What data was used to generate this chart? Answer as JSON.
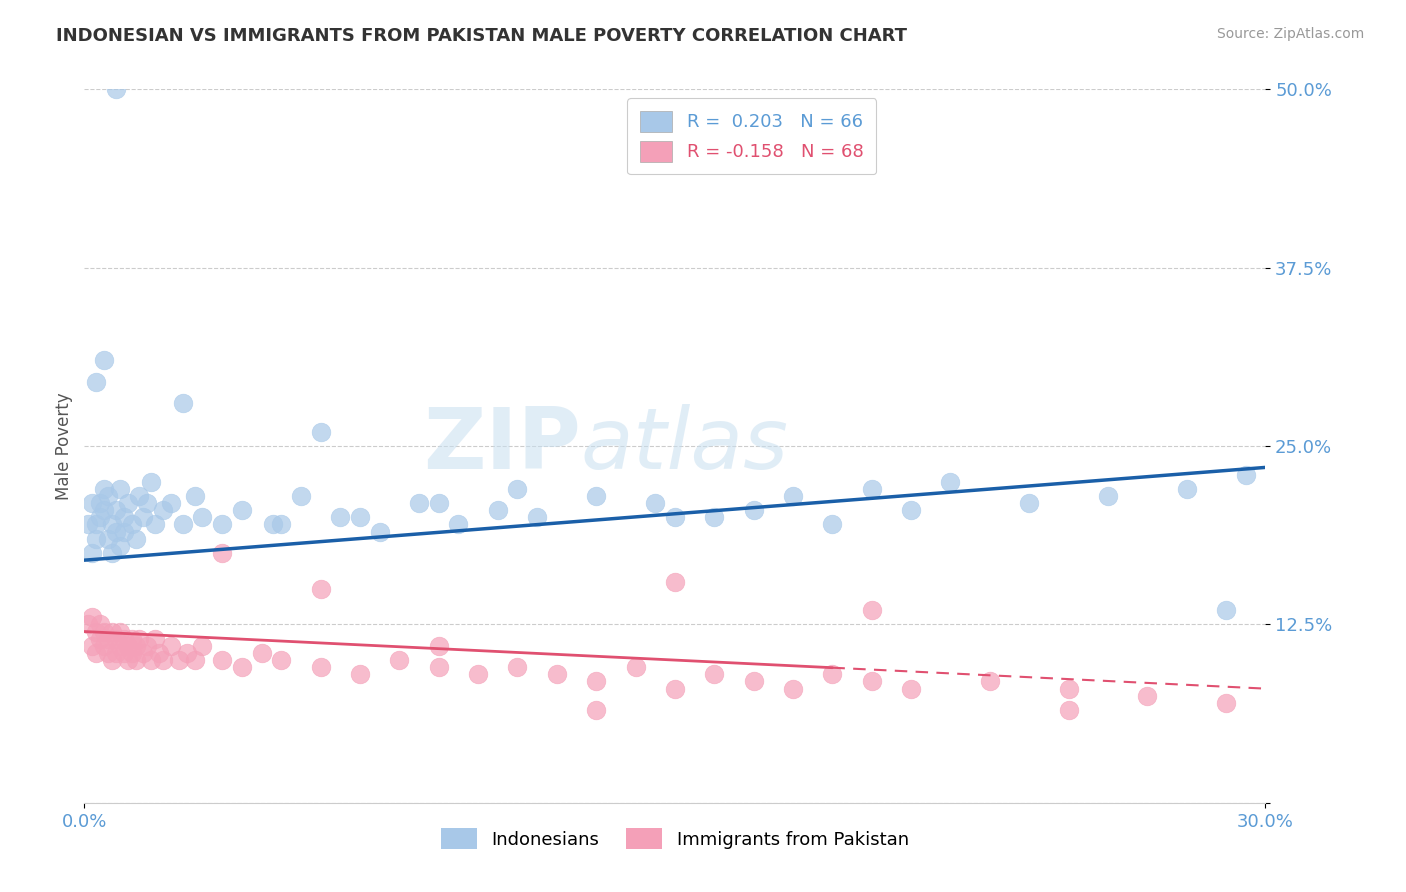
{
  "title": "INDONESIAN VS IMMIGRANTS FROM PAKISTAN MALE POVERTY CORRELATION CHART",
  "source_text": "Source: ZipAtlas.com",
  "ylabel": "Male Poverty",
  "watermark_zip": "ZIP",
  "watermark_atlas": "atlas",
  "xlim": [
    0.0,
    0.3
  ],
  "ylim": [
    0.0,
    0.5
  ],
  "yticks": [
    0.0,
    0.125,
    0.25,
    0.375,
    0.5
  ],
  "ytick_labels": [
    "",
    "12.5%",
    "25.0%",
    "37.5%",
    "50.0%"
  ],
  "xtick_labels": [
    "0.0%",
    "30.0%"
  ],
  "series1_label": "Indonesians",
  "series2_label": "Immigrants from Pakistan",
  "series1_color": "#a8c8e8",
  "series2_color": "#f4a0b8",
  "line1_color": "#1a5fa8",
  "line2_color": "#e05070",
  "background_color": "#ffffff",
  "grid_color": "#cccccc",
  "title_color": "#333333",
  "axis_tick_color": "#5b9bd5",
  "r1": 0.203,
  "n1": 66,
  "r2": -0.158,
  "n2": 68,
  "line1_x0": 0.0,
  "line1_y0": 0.17,
  "line1_x1": 0.3,
  "line1_y1": 0.235,
  "line2_x0": 0.0,
  "line2_y0": 0.12,
  "line2_x1": 0.3,
  "line2_y1": 0.08,
  "indonesians_x": [
    0.001,
    0.002,
    0.002,
    0.003,
    0.003,
    0.004,
    0.004,
    0.005,
    0.005,
    0.006,
    0.006,
    0.007,
    0.007,
    0.008,
    0.008,
    0.009,
    0.009,
    0.01,
    0.01,
    0.011,
    0.012,
    0.013,
    0.014,
    0.015,
    0.016,
    0.017,
    0.018,
    0.02,
    0.022,
    0.025,
    0.028,
    0.03,
    0.035,
    0.04,
    0.048,
    0.055,
    0.065,
    0.075,
    0.085,
    0.095,
    0.105,
    0.115,
    0.13,
    0.145,
    0.16,
    0.18,
    0.2,
    0.22,
    0.24,
    0.26,
    0.28,
    0.295,
    0.05,
    0.07,
    0.09,
    0.11,
    0.15,
    0.17,
    0.19,
    0.21,
    0.025,
    0.06,
    0.003,
    0.005,
    0.008,
    0.29
  ],
  "indonesians_y": [
    0.195,
    0.175,
    0.21,
    0.185,
    0.195,
    0.2,
    0.21,
    0.205,
    0.22,
    0.185,
    0.215,
    0.195,
    0.175,
    0.19,
    0.205,
    0.18,
    0.22,
    0.19,
    0.2,
    0.21,
    0.195,
    0.185,
    0.215,
    0.2,
    0.21,
    0.225,
    0.195,
    0.205,
    0.21,
    0.195,
    0.215,
    0.2,
    0.195,
    0.205,
    0.195,
    0.215,
    0.2,
    0.19,
    0.21,
    0.195,
    0.205,
    0.2,
    0.215,
    0.21,
    0.2,
    0.215,
    0.22,
    0.225,
    0.21,
    0.215,
    0.22,
    0.23,
    0.195,
    0.2,
    0.21,
    0.22,
    0.2,
    0.205,
    0.195,
    0.205,
    0.28,
    0.26,
    0.295,
    0.31,
    0.5,
    0.135
  ],
  "pakistan_x": [
    0.001,
    0.002,
    0.002,
    0.003,
    0.003,
    0.004,
    0.004,
    0.005,
    0.005,
    0.006,
    0.006,
    0.007,
    0.007,
    0.008,
    0.008,
    0.009,
    0.009,
    0.01,
    0.01,
    0.011,
    0.011,
    0.012,
    0.012,
    0.013,
    0.013,
    0.014,
    0.015,
    0.016,
    0.017,
    0.018,
    0.019,
    0.02,
    0.022,
    0.024,
    0.026,
    0.028,
    0.03,
    0.035,
    0.04,
    0.045,
    0.05,
    0.06,
    0.07,
    0.08,
    0.09,
    0.1,
    0.11,
    0.12,
    0.13,
    0.14,
    0.15,
    0.16,
    0.17,
    0.18,
    0.19,
    0.2,
    0.21,
    0.23,
    0.25,
    0.27,
    0.29,
    0.15,
    0.2,
    0.25,
    0.035,
    0.06,
    0.09,
    0.13
  ],
  "pakistan_y": [
    0.125,
    0.13,
    0.11,
    0.12,
    0.105,
    0.115,
    0.125,
    0.11,
    0.12,
    0.105,
    0.115,
    0.12,
    0.1,
    0.115,
    0.105,
    0.11,
    0.12,
    0.105,
    0.115,
    0.11,
    0.1,
    0.115,
    0.105,
    0.11,
    0.1,
    0.115,
    0.105,
    0.11,
    0.1,
    0.115,
    0.105,
    0.1,
    0.11,
    0.1,
    0.105,
    0.1,
    0.11,
    0.1,
    0.095,
    0.105,
    0.1,
    0.095,
    0.09,
    0.1,
    0.095,
    0.09,
    0.095,
    0.09,
    0.085,
    0.095,
    0.08,
    0.09,
    0.085,
    0.08,
    0.09,
    0.085,
    0.08,
    0.085,
    0.08,
    0.075,
    0.07,
    0.155,
    0.135,
    0.065,
    0.175,
    0.15,
    0.11,
    0.065
  ]
}
